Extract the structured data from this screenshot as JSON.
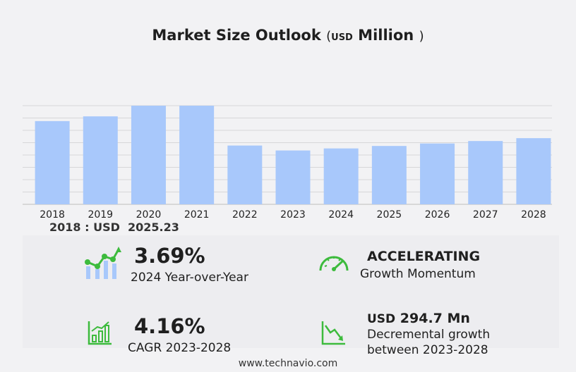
{
  "title": {
    "main": "Market Size Outlook",
    "paren_open": "(",
    "unit": "USD",
    "unit_suffix": "Million",
    "paren_close": ")"
  },
  "chart_data": {
    "type": "bar",
    "categories": [
      "2018",
      "2019",
      "2020",
      "2021",
      "2022",
      "2023",
      "2024",
      "2025",
      "2026",
      "2027",
      "2028"
    ],
    "values": [
      2025.23,
      2140,
      2400,
      2400,
      1430,
      1310,
      1360,
      1420,
      1480,
      1540,
      1610
    ],
    "ylim": [
      0,
      2400
    ],
    "grid": true,
    "bar_color": "#a8c8fb"
  },
  "base_label": "2018 : USD  2025.23",
  "stats": {
    "yoy_value": "3.69%",
    "yoy_label": "2024 Year-over-Year",
    "momentum_value": "ACCELERATING",
    "momentum_label": "Growth Momentum",
    "cagr_value": "4.16%",
    "cagr_label": "CAGR 2023-2028",
    "growth_unit": "USD",
    "growth_value": "294.7 Mn",
    "growth_label_1": "Decremental growth",
    "growth_label_2": "between 2023-2028"
  },
  "icons": {
    "yoy": "growth-chart-icon",
    "momentum": "speedometer-icon",
    "cagr": "bar-chart-icon",
    "growth": "decline-chart-icon",
    "accent": "#3dbb3d"
  },
  "footer": "www.technavio.com"
}
